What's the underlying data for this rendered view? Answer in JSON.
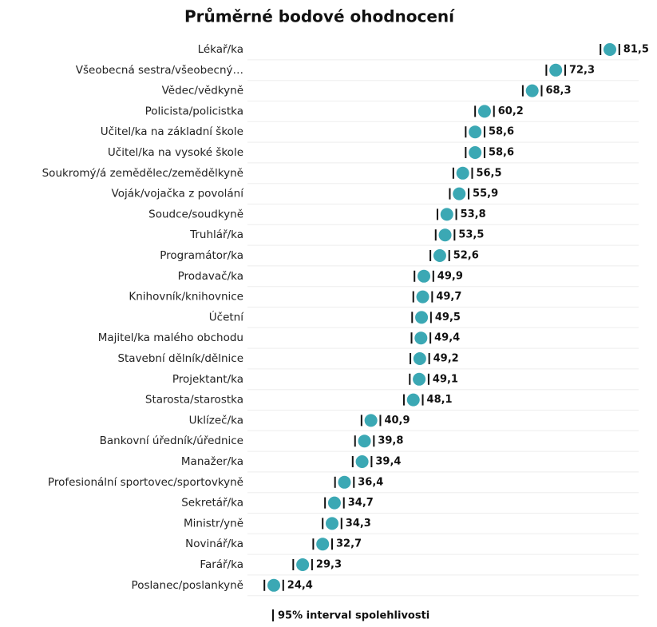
{
  "chart_data": {
    "type": "dot",
    "title": "Průměrné bodové ohodnocení",
    "categories": [
      "Lékař/ka",
      "Všeobecná sestra/všeobecný…",
      "Vědec/vědkyně",
      "Policista/policistka",
      "Učitel/ka na základní škole",
      "Učitel/ka na vysoké škole",
      "Soukromý/á zemědělec/zemědělkyně",
      "Voják/vojačka z povolání",
      "Soudce/soudkyně",
      "Truhlář/ka",
      "Programátor/ka",
      "Prodavač/ka",
      "Knihovník/knihovnice",
      "Účetní",
      "Majitel/ka malého obchodu",
      "Stavební dělník/dělnice",
      "Projektant/ka",
      "Starosta/starostka",
      "Uklízeč/ka",
      "Bankovní úředník/úřednice",
      "Manažer/ka",
      "Profesionální sportovec/sportovkyně",
      "Sekretář/ka",
      "Ministr/yně",
      "Novinář/ka",
      "Farář/ka",
      "Poslanec/poslankyně"
    ],
    "values": [
      81.5,
      72.3,
      68.3,
      60.2,
      58.6,
      58.6,
      56.5,
      55.9,
      53.8,
      53.5,
      52.6,
      49.9,
      49.7,
      49.5,
      49.4,
      49.2,
      49.1,
      48.1,
      40.9,
      39.8,
      39.4,
      36.4,
      34.7,
      34.3,
      32.7,
      29.3,
      24.4
    ],
    "value_labels": [
      "81,5",
      "72,3",
      "68,3",
      "60,2",
      "58,6",
      "58,6",
      "56,5",
      "55,9",
      "53,8",
      "53,5",
      "52,6",
      "49,9",
      "49,7",
      "49,5",
      "49,4",
      "49,2",
      "49,1",
      "48,1",
      "40,9",
      "39,8",
      "39,4",
      "36,4",
      "34,7",
      "34,3",
      "32,7",
      "29,3",
      "24,4"
    ],
    "errors": [
      1.6,
      1.6,
      1.6,
      1.6,
      1.6,
      1.6,
      1.6,
      1.6,
      1.6,
      1.6,
      1.6,
      1.6,
      1.6,
      1.6,
      1.6,
      1.6,
      1.6,
      1.6,
      1.6,
      1.6,
      1.6,
      1.6,
      1.6,
      1.6,
      1.6,
      1.6,
      1.6
    ],
    "color": "#3ba8b4",
    "legend": "95% interval spolehlivosti"
  }
}
